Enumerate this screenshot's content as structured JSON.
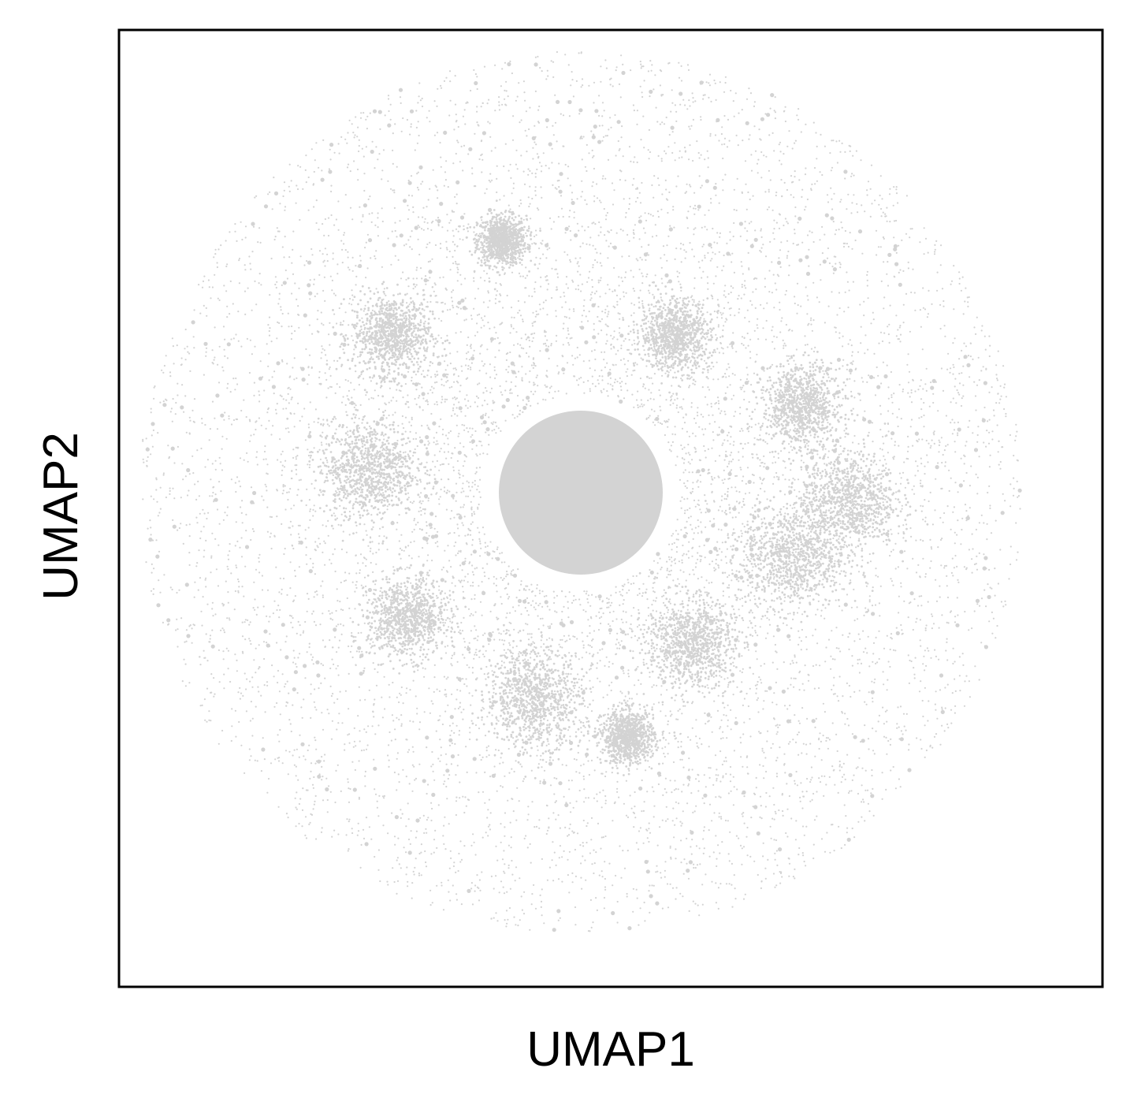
{
  "chart_data": {
    "type": "scatter",
    "title": "",
    "xlabel": "UMAP1",
    "ylabel": "UMAP2",
    "xticks": [],
    "yticks": [],
    "legend": "none",
    "grid": false,
    "point_color": "#d3d3d3",
    "description_of_distribution": {
      "central_dense_cluster": {
        "center": [
          0,
          0
        ],
        "radius": 1.0
      },
      "outer_halo_radius": 5.6,
      "peripheral_clusters": [
        {
          "center": [
            -1.0,
            3.2
          ],
          "size": 0.28
        },
        {
          "center": [
            -2.4,
            2.0
          ],
          "size": 0.45
        },
        {
          "center": [
            -2.7,
            0.3
          ],
          "size": 0.55
        },
        {
          "center": [
            -2.2,
            -1.6
          ],
          "size": 0.45
        },
        {
          "center": [
            -0.6,
            -2.6
          ],
          "size": 0.55
        },
        {
          "center": [
            0.6,
            -3.1
          ],
          "size": 0.3
        },
        {
          "center": [
            1.4,
            -1.9
          ],
          "size": 0.5
        },
        {
          "center": [
            2.7,
            -0.8
          ],
          "size": 0.6
        },
        {
          "center": [
            3.4,
            -0.1
          ],
          "size": 0.55
        },
        {
          "center": [
            2.8,
            1.1
          ],
          "size": 0.45
        },
        {
          "center": [
            1.2,
            2.0
          ],
          "size": 0.4
        }
      ]
    }
  }
}
